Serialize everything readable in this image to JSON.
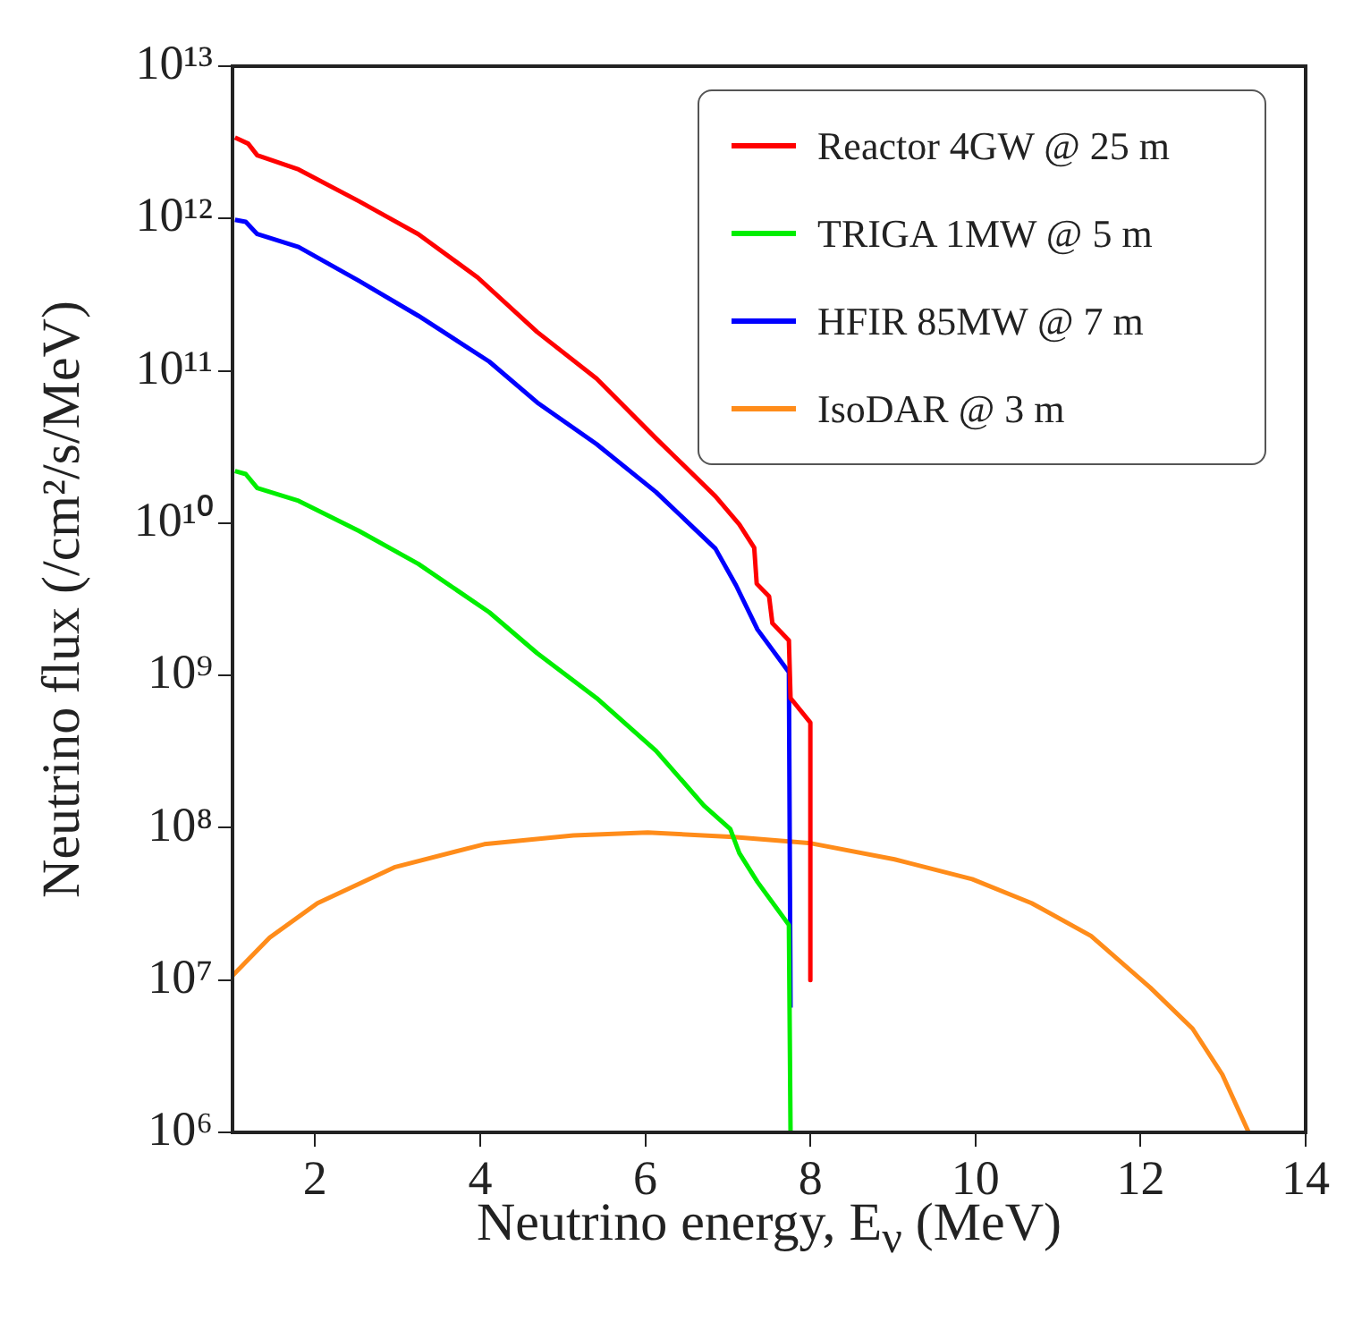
{
  "chart_data": {
    "type": "line",
    "xlabel": "Neutrino energy, E$_{ν}$ (MeV)",
    "ylabel": "Neutrino flux (/cm²/s/MeV)",
    "log": "y",
    "grid": false,
    "legend": "top right",
    "marker": "none",
    "line_style": "solid",
    "xlim": [
      1,
      14
    ],
    "xticks": [
      2,
      4,
      6,
      8,
      10,
      12,
      14
    ],
    "ylim": [
      1000000.0,
      10000000000000.0
    ],
    "yticks": [
      {
        "value": 1000000.0,
        "label": "10⁶"
      },
      {
        "value": 10000000.0,
        "label": "10⁷"
      },
      {
        "value": 100000000.0,
        "label": "10⁸"
      },
      {
        "value": 1000000000.0,
        "label": "10⁹"
      },
      {
        "value": 10000000000.0,
        "label": "10¹⁰"
      },
      {
        "value": 100000000000.0,
        "label": "10¹¹"
      },
      {
        "value": 1000000000000.0,
        "label": "10¹²"
      },
      {
        "value": 10000000000000.0,
        "label": "10¹³"
      }
    ],
    "series": [
      {
        "name": "Reactor 4GW @ 25 m",
        "color": "#ff0000",
        "x": [
          1.03,
          1.19,
          1.3,
          1.8,
          2.53,
          3.25,
          3.97,
          4.69,
          5.41,
          6.13,
          6.85,
          7.14,
          7.32,
          7.35,
          7.5,
          7.54,
          7.74,
          7.76,
          8.0,
          8.0
        ],
        "values": [
          3400000000000.0,
          3100000000000.0,
          2600000000000.0,
          2100000000000.0,
          1300000000000.0,
          790000000000.0,
          410000000000.0,
          180000000000.0,
          89000000000.0,
          36000000000.0,
          15000000000.0,
          9800000000.0,
          6900000000.0,
          4000000000.0,
          3300000000.0,
          2200000000.0,
          1700000000.0,
          710000000.0,
          490000000.0,
          10000000.0
        ]
      },
      {
        "name": "TRIGA 1MW @ 5 m",
        "color": "#00ee00",
        "x": [
          1.03,
          1.16,
          1.3,
          1.8,
          2.53,
          3.25,
          4.11,
          4.69,
          5.41,
          6.13,
          6.71,
          7.03,
          7.14,
          7.36,
          7.74,
          7.76
        ],
        "values": [
          22000000000.0,
          21000000000.0,
          17000000000.0,
          14000000000.0,
          8900000000.0,
          5400000000.0,
          2600000000.0,
          1400000000.0,
          710000000.0,
          320000000.0,
          140000000.0,
          98000000.0,
          68000000.0,
          44000000.0,
          23000000.0,
          1000000.0
        ]
      },
      {
        "name": "HFIR 85MW @ 7 m",
        "color": "#0000ff",
        "x": [
          1.03,
          1.16,
          1.3,
          1.8,
          2.53,
          3.25,
          4.11,
          4.69,
          5.41,
          6.13,
          6.85,
          7.1,
          7.36,
          7.74,
          7.76
        ],
        "values": [
          980000000000.0,
          950000000000.0,
          790000000000.0,
          650000000000.0,
          390000000000.0,
          230000000000.0,
          115000000000.0,
          62000000000.0,
          33000000000.0,
          16000000000.0,
          6800000000.0,
          3900000000.0,
          2000000000.0,
          1050000000.0,
          6600000.0
        ]
      },
      {
        "name": "IsoDAR @ 3 m",
        "color": "#ff8c1a",
        "x": [
          1.0,
          1.45,
          2.03,
          2.96,
          4.05,
          5.13,
          6.03,
          7.07,
          8.01,
          9.02,
          9.96,
          10.68,
          11.4,
          12.12,
          12.63,
          12.99,
          13.31
        ],
        "values": [
          10700000.0,
          19000000.0,
          32000000.0,
          55000000.0,
          78000000.0,
          89000000.0,
          93000000.0,
          87000000.0,
          79000000.0,
          62000000.0,
          46000000.0,
          32000000.0,
          19500000.0,
          8900000.0,
          4800000.0,
          2400000.0,
          1000000.0
        ]
      }
    ]
  }
}
